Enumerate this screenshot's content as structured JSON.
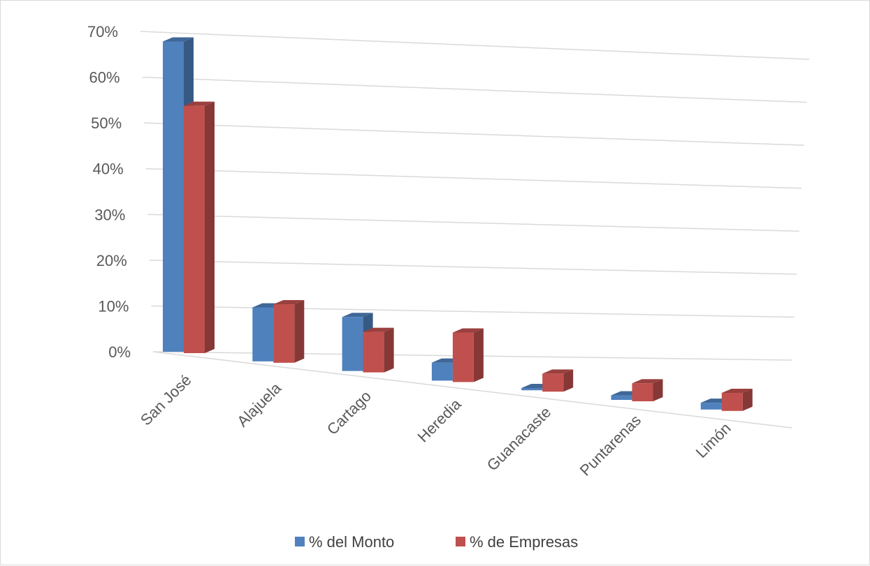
{
  "chart_data": {
    "type": "bar",
    "subtype": "3d-clustered-column",
    "title": "",
    "xlabel": "",
    "ylabel": "",
    "categories": [
      "San José",
      "Alajuela",
      "Cartago",
      "Heredia",
      "Guanacaste",
      "Puntarenas",
      "Limón"
    ],
    "series": [
      {
        "name": "% del Monto",
        "values": [
          69,
          12,
          12,
          4,
          0.5,
          1,
          1.5
        ],
        "color": "#4f81bd"
      },
      {
        "name": "% de Empresas",
        "values": [
          55,
          13,
          9,
          11,
          4,
          4,
          4
        ],
        "color": "#c0504d"
      }
    ],
    "ylim": [
      0,
      70
    ],
    "yticks": [
      "0%",
      "10%",
      "20%",
      "30%",
      "40%",
      "50%",
      "60%",
      "70%"
    ],
    "grid": true,
    "legend_position": "bottom"
  }
}
